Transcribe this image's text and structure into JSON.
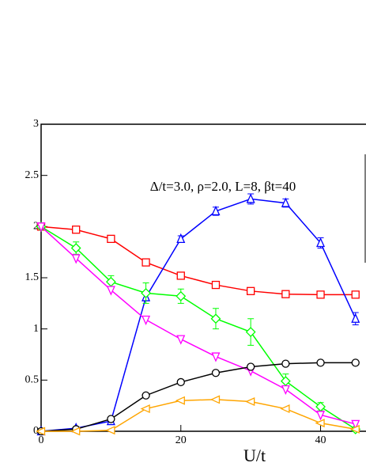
{
  "chart_data": {
    "type": "line",
    "annotation": "Δ/t=3.0, ρ=2.0, L=8, βt=40",
    "x_label": "U/t",
    "x": [
      0,
      5,
      10,
      15,
      20,
      25,
      30,
      35,
      40,
      45
    ],
    "xlim": [
      0,
      46.5
    ],
    "ylim": [
      0,
      3
    ],
    "xticks": [
      0,
      20,
      40
    ],
    "yticks": [
      0,
      0.5,
      1,
      1.5,
      2,
      2.5,
      3
    ],
    "series": [
      {
        "color": "#ff0000",
        "marker": "square",
        "values": [
          2.0,
          1.97,
          1.88,
          1.65,
          1.52,
          1.43,
          1.37,
          1.34,
          1.335,
          1.335
        ]
      },
      {
        "color": "#0000ff",
        "marker": "triangle-up",
        "values": [
          0,
          0.03,
          0.1,
          1.31,
          1.88,
          2.15,
          2.27,
          2.23,
          1.84,
          1.1
        ],
        "errors": [
          0,
          0,
          0,
          0.03,
          0.03,
          0.04,
          0.05,
          0.04,
          0.05,
          0.06
        ]
      },
      {
        "color": "#00ff00",
        "marker": "diamond",
        "values": [
          2.0,
          1.79,
          1.46,
          1.35,
          1.32,
          1.1,
          0.97,
          0.49,
          0.24,
          0.02
        ],
        "errors": [
          0,
          0.06,
          0.06,
          0.1,
          0.07,
          0.1,
          0.13,
          0.07,
          0.04,
          0.02
        ]
      },
      {
        "color": "#ff00ff",
        "marker": "triangle-down",
        "values": [
          2.0,
          1.69,
          1.38,
          1.09,
          0.9,
          0.73,
          0.59,
          0.41,
          0.16,
          0.07
        ]
      },
      {
        "color": "#000000",
        "marker": "circle",
        "values": [
          0,
          0.02,
          0.12,
          0.35,
          0.48,
          0.57,
          0.63,
          0.66,
          0.67,
          0.67
        ]
      },
      {
        "color": "#ffa500",
        "marker": "triangle-left",
        "values": [
          0,
          0,
          0.01,
          0.22,
          0.3,
          0.31,
          0.29,
          0.22,
          0.08,
          0.02
        ]
      }
    ]
  }
}
